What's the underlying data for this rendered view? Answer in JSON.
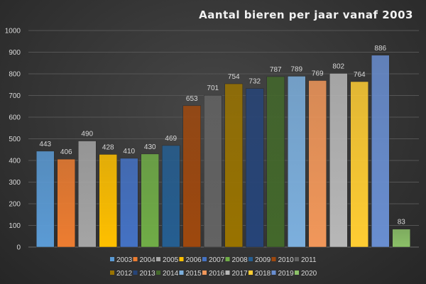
{
  "chart_data": {
    "type": "bar",
    "title": "Aantal bieren per jaar vanaf 2003",
    "xlabel": "",
    "ylabel": "",
    "ylim": [
      0,
      1000
    ],
    "yticks": [
      0,
      100,
      200,
      300,
      400,
      500,
      600,
      700,
      800,
      900,
      1000
    ],
    "grid": true,
    "legend_position": "bottom",
    "categories": [
      "2003",
      "2004",
      "2005",
      "2006",
      "2007",
      "2008",
      "2009",
      "2010",
      "2011",
      "2012",
      "2013",
      "2014",
      "2015",
      "2016",
      "2017",
      "2018",
      "2019",
      "2020"
    ],
    "values": [
      443,
      406,
      490,
      428,
      410,
      430,
      469,
      653,
      701,
      754,
      732,
      787,
      789,
      769,
      802,
      764,
      886,
      83
    ],
    "colors": [
      "#5b9bd5",
      "#ed7d31",
      "#a5a5a5",
      "#ffc000",
      "#4472c4",
      "#70ad47",
      "#255e91",
      "#9e480e",
      "#636363",
      "#997300",
      "#264478",
      "#43682b",
      "#7cafdd",
      "#f1975a",
      "#b7b7b7",
      "#ffcd33",
      "#698ed0",
      "#8cc168"
    ]
  }
}
